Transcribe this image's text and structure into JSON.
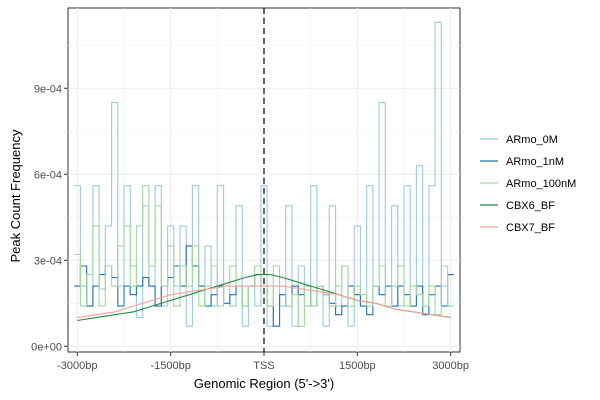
{
  "chart_data": {
    "type": "line",
    "title": "",
    "xlabel": "Genomic Region (5'->3')",
    "ylabel": "Peak Count Frequency",
    "xlim": [
      -3150,
      3150
    ],
    "ylim": [
      -2e-05,
      0.00118
    ],
    "x_ticks": [
      {
        "value": -3000,
        "label": "-3000bp"
      },
      {
        "value": -1500,
        "label": "-1500bp"
      },
      {
        "value": 0,
        "label": "TSS"
      },
      {
        "value": 1500,
        "label": "1500bp"
      },
      {
        "value": 3000,
        "label": "3000bp"
      }
    ],
    "y_ticks": [
      {
        "value": 0,
        "label": "0e+00"
      },
      {
        "value": 0.0003,
        "label": "3e-04"
      },
      {
        "value": 0.0006,
        "label": "6e-04"
      },
      {
        "value": 0.0009,
        "label": "9e-04"
      }
    ],
    "grid": true,
    "vline": {
      "x": 0,
      "style": "dashed"
    },
    "legend": {
      "position": "right"
    },
    "series": [
      {
        "name": "ARmo_0M",
        "color": "#9ecae1",
        "step": true,
        "x": [
          -3000,
          -2900,
          -2800,
          -2700,
          -2600,
          -2500,
          -2400,
          -2300,
          -2200,
          -2100,
          -2000,
          -1900,
          -1800,
          -1700,
          -1600,
          -1500,
          -1400,
          -1300,
          -1200,
          -1100,
          -1000,
          -900,
          -800,
          -700,
          -600,
          -500,
          -400,
          -300,
          -200,
          -100,
          0,
          100,
          200,
          300,
          400,
          500,
          600,
          700,
          800,
          900,
          1000,
          1100,
          1200,
          1300,
          1400,
          1500,
          1600,
          1700,
          1800,
          1900,
          2000,
          2100,
          2200,
          2300,
          2400,
          2500,
          2600,
          2700,
          2800,
          2900,
          3000
        ],
        "y": [
          0.00056,
          0.00021,
          0.00014,
          0.00056,
          0.0002,
          0.00042,
          0.00085,
          0.00021,
          0.00056,
          0.00028,
          0.0001,
          0.00049,
          0.00021,
          0.00056,
          0.00014,
          0.00042,
          0.00021,
          0.00042,
          7e-05,
          0.00056,
          0.00021,
          0.00035,
          0.00014,
          0.00056,
          0.00021,
          0.00014,
          0.00049,
          7e-05,
          0.00021,
          0.00014,
          0.00056,
          7e-05,
          0.00021,
          0.00014,
          0.00049,
          7e-05,
          0.00028,
          0.00014,
          0.00056,
          0.00021,
          7e-05,
          0.00049,
          0.00014,
          0.00028,
          7e-05,
          0.00042,
          0.00014,
          0.00056,
          0.00021,
          0.00085,
          0.00021,
          0.00049,
          0.00014,
          0.00056,
          0.00021,
          0.00063,
          0.00014,
          0.00056,
          0.00113,
          0.00021,
          0.00014
        ]
      },
      {
        "name": "ARmo_1nM",
        "color": "#2171b5",
        "step": true,
        "x": [
          -3000,
          -2900,
          -2800,
          -2700,
          -2600,
          -2500,
          -2400,
          -2300,
          -2200,
          -2100,
          -2000,
          -1900,
          -1800,
          -1700,
          -1600,
          -1500,
          -1400,
          -1300,
          -1200,
          -1100,
          -1000,
          -900,
          -800,
          -700,
          -600,
          -500,
          -400,
          -300,
          -200,
          -100,
          0,
          100,
          200,
          300,
          400,
          500,
          600,
          700,
          800,
          900,
          1000,
          1100,
          1200,
          1300,
          1400,
          1500,
          1600,
          1700,
          1800,
          1900,
          2000,
          2100,
          2200,
          2300,
          2400,
          2500,
          2600,
          2700,
          2800,
          2900,
          3000
        ],
        "y": [
          0.00021,
          0.00028,
          0.00014,
          0.00021,
          0.00025,
          0.00028,
          0.00024,
          0.00014,
          0.00021,
          0.00018,
          0.00021,
          0.00024,
          0.00021,
          0.00014,
          0.00021,
          0.00024,
          0.00028,
          0.00021,
          0.00035,
          0.00028,
          0.00021,
          0.00014,
          0.00018,
          0.00021,
          0.00015,
          0.00018,
          0.00021,
          0.00014,
          0.00021,
          0.00025,
          0.00021,
          0.00014,
          7e-05,
          0.00018,
          0.00014,
          0.00021,
          0.00018,
          0.00021,
          0.00014,
          0.00021,
          0.00018,
          0.00015,
          0.00011,
          0.00014,
          0.00021,
          0.00018,
          0.00014,
          0.00011,
          0.00021,
          0.00018,
          0.00021,
          0.00014,
          0.00021,
          0.00018,
          0.00014,
          0.00021,
          0.00011,
          0.00018,
          0.00021,
          0.00014,
          0.00025
        ]
      },
      {
        "name": "ARmo_100nM",
        "color": "#a1d99b",
        "step": true,
        "x": [
          -3000,
          -2900,
          -2800,
          -2700,
          -2600,
          -2500,
          -2400,
          -2300,
          -2200,
          -2100,
          -2000,
          -1900,
          -1800,
          -1700,
          -1600,
          -1500,
          -1400,
          -1300,
          -1200,
          -1100,
          -1000,
          -900,
          -800,
          -700,
          -600,
          -500,
          -400,
          -300,
          -200,
          -100,
          0,
          100,
          200,
          300,
          400,
          500,
          600,
          700,
          800,
          900,
          1000,
          1100,
          1200,
          1300,
          1400,
          1500,
          1600,
          1700,
          1800,
          1900,
          2000,
          2100,
          2200,
          2300,
          2400,
          2500,
          2600,
          2700,
          2800,
          2900,
          3000
        ],
        "y": [
          0.00032,
          0.00014,
          0.00025,
          0.00042,
          0.00014,
          0.00028,
          0.00021,
          0.00035,
          0.00042,
          0.00021,
          0.00042,
          0.00056,
          0.00028,
          0.00049,
          0.00021,
          0.00035,
          0.00014,
          0.00028,
          0.00021,
          0.00035,
          0.00014,
          0.00021,
          0.00028,
          0.00014,
          0.00021,
          0.00028,
          0.00021,
          0.00014,
          0.00021,
          0.00028,
          0.00021,
          0.00014,
          0.00028,
          0.00021,
          0.00014,
          0.00018,
          7e-05,
          0.00021,
          0.00014,
          0.00021,
          0.00018,
          0.00014,
          0.00021,
          0.00028,
          0.00014,
          0.00021,
          0.00018,
          0.00014,
          0.00021,
          0.00028,
          0.00014,
          0.00021,
          0.00028,
          0.00014,
          0.00021,
          0.00018,
          0.00014,
          0.00021,
          0.00011,
          0.00028,
          0.00014
        ]
      },
      {
        "name": "CBX6_BF",
        "color": "#238b45",
        "step": false,
        "x": [
          -3000,
          -2700,
          -2400,
          -2100,
          -1800,
          -1500,
          -1200,
          -900,
          -600,
          -300,
          -100,
          0,
          100,
          300,
          600,
          900,
          1200,
          1500,
          1800,
          2100,
          2400,
          2700,
          3000
        ],
        "y": [
          9e-05,
          0.0001,
          0.00011,
          0.00012,
          0.00014,
          0.00016,
          0.00018,
          0.0002,
          0.00022,
          0.00024,
          0.00025,
          0.00025,
          0.00025,
          0.00024,
          0.00022,
          0.0002,
          0.00018,
          0.00016,
          0.00015,
          0.00013,
          0.00012,
          0.00011,
          0.0001
        ]
      },
      {
        "name": "CBX7_BF",
        "color": "#f4a09a",
        "step": false,
        "x": [
          -3000,
          -2700,
          -2400,
          -2100,
          -1800,
          -1500,
          -1200,
          -900,
          -600,
          -300,
          0,
          300,
          600,
          900,
          1200,
          1500,
          1800,
          2100,
          2400,
          2700,
          3000
        ],
        "y": [
          0.0001,
          0.00011,
          0.00012,
          0.00014,
          0.00016,
          0.00018,
          0.00019,
          0.0002,
          0.00021,
          0.00021,
          0.00021,
          0.00021,
          0.0002,
          0.00019,
          0.00018,
          0.00016,
          0.00015,
          0.00013,
          0.00012,
          0.00011,
          0.0001
        ]
      }
    ]
  }
}
